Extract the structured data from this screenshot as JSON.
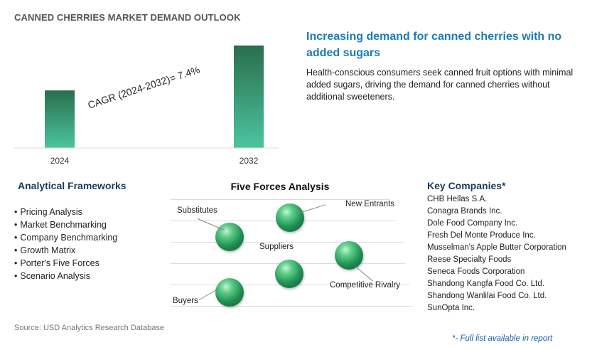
{
  "title": "CANNED CHERRIES MARKET DEMAND OUTLOOK",
  "chart_data": {
    "type": "bar",
    "categories": [
      "2024",
      "2032"
    ],
    "values": [
      1.0,
      1.78
    ],
    "annotation": "CAGR (2024-2032)=   7.4%",
    "cagr_percent": 7.4,
    "bar_color_top": "#2e7d55",
    "bar_color_bottom": "#4fc3a1"
  },
  "headline": "Increasing demand for canned cherries with no added sugars",
  "description": "Health-conscious consumers seek canned fruit options with minimal added sugars, driving the demand for canned cherries without additional sweeteners.",
  "frameworks": {
    "heading": "Analytical Frameworks",
    "items": [
      "Pricing Analysis",
      "Market Benchmarking",
      "Company Benchmarking",
      "Growth Matrix",
      "Porter's Five Forces",
      "Scenario Analysis"
    ]
  },
  "five_forces": {
    "heading": "Five Forces Analysis",
    "labels": {
      "substitutes": "Substitutes",
      "new_entrants": "New Entrants",
      "suppliers": "Suppliers",
      "competitive_rivalry": "Competitive Rivalry",
      "buyers": "Buyers"
    }
  },
  "companies": {
    "heading": "Key Companies*",
    "items": [
      "CHB Hellas S.A.",
      "Conagra Brands Inc.",
      "Dole Food Company Inc.",
      "Fresh Del Monte Produce Inc.",
      "Musselman's Apple Butter Corporation",
      "Reese Specialty Foods",
      "Seneca Foods Corporation",
      "Shandong Kangfa Food Co. Ltd.",
      "Shandong Wanlilai Food Co. Ltd.",
      "SunOpta Inc."
    ],
    "note": "*- Full list available in report"
  },
  "source": "Source: USD Analytics Research Database",
  "colors": {
    "headline": "#1b7bb8",
    "heading": "#1a3b5c",
    "note": "#1b5fa8"
  }
}
